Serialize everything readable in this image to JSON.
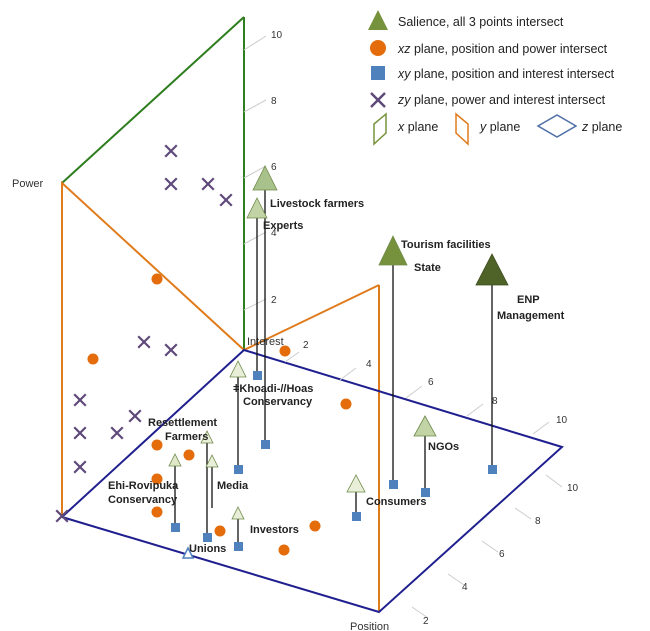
{
  "legend": {
    "salience": "Salience, all 3 points intersect",
    "xz": {
      "var": "xz",
      "rest": " plane, position and power intersect"
    },
    "xy": {
      "var": "xy",
      "rest": " plane, position and interest intersect"
    },
    "zy": {
      "var": "zy",
      "rest": " plane, power and interest intersect"
    },
    "x_plane": {
      "var": "x",
      "rest": " plane"
    },
    "y_plane": {
      "var": "y",
      "rest": " plane"
    },
    "z_plane": {
      "var": "z",
      "rest": " plane"
    }
  },
  "axes": {
    "power": "Power",
    "interest": "Interest",
    "position": "Position",
    "power_ticks": [
      "10",
      "8",
      "6",
      "4",
      "2"
    ],
    "interest_ticks": [
      "2",
      "4",
      "6",
      "8",
      "10"
    ],
    "position_ticks": [
      "10",
      "8",
      "6",
      "4",
      "2"
    ]
  },
  "stakeholders": {
    "livestock": "Livestock farmers",
    "experts": "Experts",
    "tourism": "Tourism facilities",
    "state": "State",
    "enp_1": "ENP",
    "enp_2": "Management",
    "khoadi_1": "ǂKhoadi-//Hoas",
    "khoadi_2": "Conservancy",
    "resettlement_1": "Resettlement",
    "resettlement_2": "Farmers",
    "ehi_1": "Ehi-Rovipuka",
    "ehi_2": "Conservancy",
    "media": "Media",
    "ngos": "NGOs",
    "consumers": "Consumers",
    "investors": "Investors",
    "unions": "Unions"
  },
  "colors": {
    "salience_light": "#dfe8c8",
    "salience_mid": "#a9c18a",
    "salience_dark": "#556b2f",
    "xz_marker": "#e46c0a",
    "xy_marker": "#4f81bd",
    "zy_marker": "#5f497a",
    "x_plane_line": "#2e7d1e",
    "y_plane_line": "#e07b1c",
    "z_plane_line": "#1f1f8f"
  }
}
